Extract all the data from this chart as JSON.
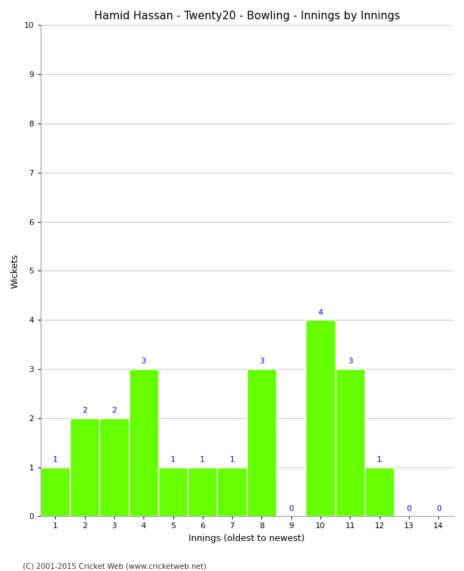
{
  "title": "Hamid Hassan - Twenty20 - Bowling - Innings by Innings",
  "xlabel": "Innings (oldest to newest)",
  "ylabel": "Wickets",
  "categories": [
    1,
    2,
    3,
    4,
    5,
    6,
    7,
    8,
    9,
    10,
    11,
    12,
    13,
    14
  ],
  "values": [
    1,
    2,
    2,
    3,
    1,
    1,
    1,
    3,
    0,
    4,
    3,
    1,
    0,
    0
  ],
  "bar_color": "#66ff00",
  "bar_edge_color": "#ffffff",
  "label_color": "#0000cc",
  "ylim": [
    0,
    10
  ],
  "yticks": [
    0,
    1,
    2,
    3,
    4,
    5,
    6,
    7,
    8,
    9,
    10
  ],
  "background_color": "#ffffff",
  "grid_color": "#cccccc",
  "title_fontsize": 11,
  "axis_label_fontsize": 9,
  "tick_fontsize": 8,
  "value_label_fontsize": 8,
  "footer": "(C) 2001-2015 Cricket Web (www.cricketweb.net)"
}
